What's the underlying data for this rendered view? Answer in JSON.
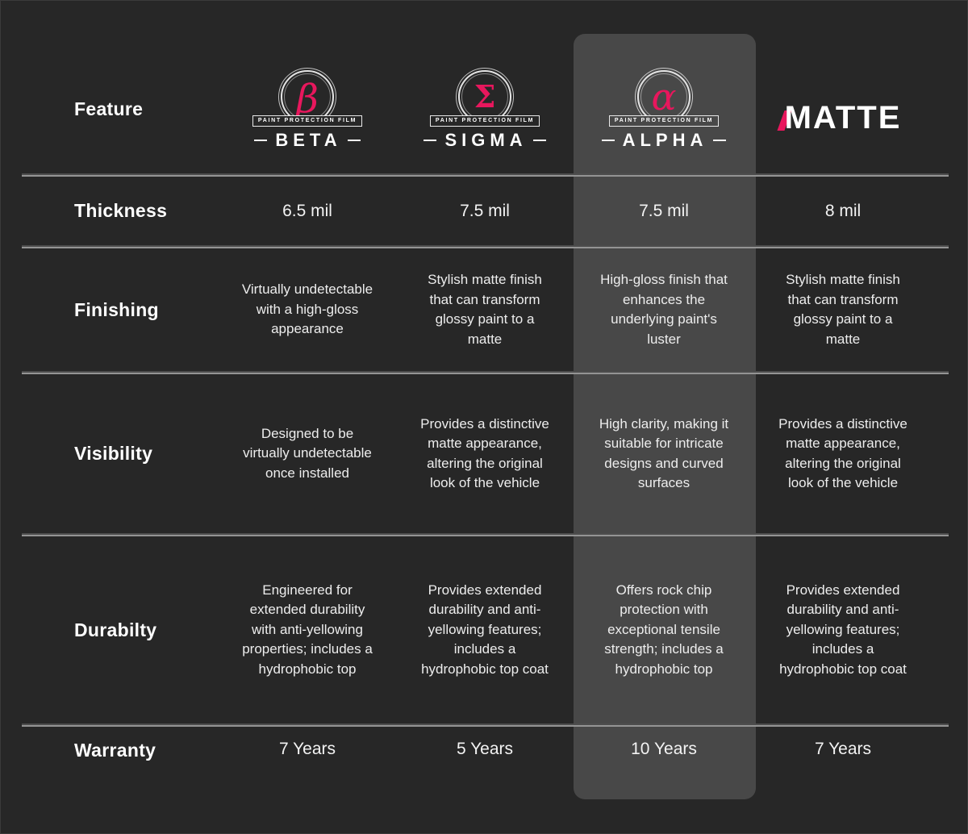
{
  "accent_color": "#e8175d",
  "background_color": "#272727",
  "highlight_color": "#484848",
  "header": {
    "feature_label": "Feature",
    "caption": "PAINT PROTECTION FILM",
    "brands": [
      {
        "name": "BETA",
        "glyph": "β"
      },
      {
        "name": "SIGMA",
        "glyph": "Σ"
      },
      {
        "name": "ALPHA",
        "glyph": "α",
        "highlighted": true
      },
      {
        "name": "MATTE"
      }
    ]
  },
  "rows": [
    {
      "label": "Thickness",
      "cells": [
        "6.5 mil",
        "7.5 mil",
        "7.5 mil",
        "8 mil"
      ]
    },
    {
      "label": "Finishing",
      "cells": [
        "Virtually undetectable with a high-gloss appearance",
        "Stylish matte finish that can transform glossy paint to a matte",
        "High-gloss finish that enhances the underlying paint's luster",
        "Stylish matte finish that can transform glossy paint to a matte"
      ]
    },
    {
      "label": "Visibility",
      "cells": [
        "Designed to be virtually undetectable once installed",
        "Provides a distinctive matte appearance, altering the original look of the vehicle",
        "High clarity, making it suitable for intricate designs and curved surfaces",
        "Provides a distinctive matte appearance, altering the original look of the vehicle"
      ]
    },
    {
      "label": "Durabilty",
      "cells": [
        "Engineered for extended durability with anti-yellowing properties; includes a hydrophobic top",
        "Provides extended durability and anti-yellowing features; includes a hydrophobic top coat",
        "Offers rock chip protection with exceptional tensile strength; includes a hydrophobic top",
        "Provides extended durability and anti-yellowing features; includes a hydrophobic top coat"
      ]
    },
    {
      "label": "Warranty",
      "cells": [
        "7 Years",
        "5 Years",
        "10 Years",
        "7 Years"
      ]
    }
  ],
  "chart_data": {
    "type": "table",
    "columns": [
      "Feature",
      "BETA",
      "SIGMA",
      "ALPHA",
      "MATTE"
    ],
    "highlighted_column": "ALPHA",
    "rows": [
      [
        "Thickness",
        "6.5 mil",
        "7.5 mil",
        "7.5 mil",
        "8 mil"
      ],
      [
        "Finishing",
        "Virtually undetectable with a high-gloss appearance",
        "Stylish matte finish that can transform glossy paint to a matte",
        "High-gloss finish that enhances the underlying paint's luster",
        "Stylish matte finish that can transform glossy paint to a matte"
      ],
      [
        "Visibility",
        "Designed to be virtually undetectable once installed",
        "Provides a distinctive matte appearance, altering the original look of the vehicle",
        "High clarity, making it suitable for intricate designs and curved surfaces",
        "Provides a distinctive matte appearance, altering the original look of the vehicle"
      ],
      [
        "Durabilty",
        "Engineered for extended durability with anti-yellowing properties; includes a hydrophobic top",
        "Provides extended durability and anti-yellowing features; includes a hydrophobic top coat",
        "Offers rock chip protection with exceptional tensile strength; includes a hydrophobic top",
        "Provides extended durability and anti-yellowing features; includes a hydrophobic top coat"
      ],
      [
        "Warranty",
        "7 Years",
        "5 Years",
        "10 Years",
        "7 Years"
      ]
    ]
  }
}
